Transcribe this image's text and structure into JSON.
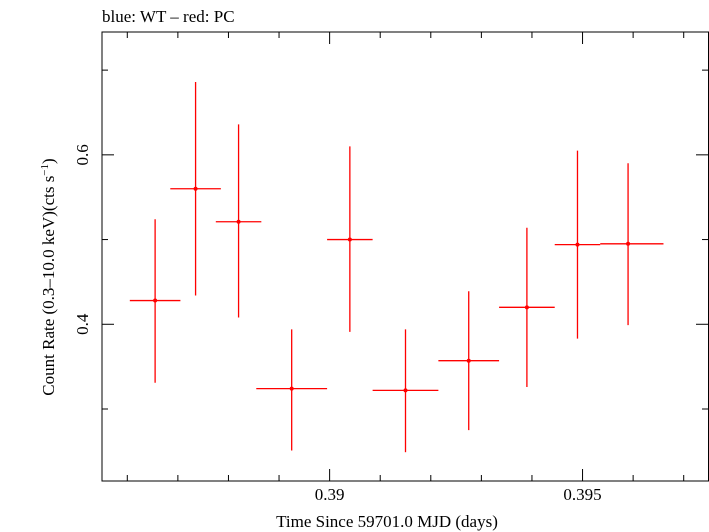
{
  "chart_data": {
    "type": "scatter",
    "title": "blue: WT – red: PC",
    "xlabel": "Time Since 59701.0 MJD (days)",
    "ylabel_main": "Count Rate (0.3–10.0 keV)(cts s",
    "ylabel_sup": "−1",
    "ylabel_end": ")",
    "xlim": [
      0.3855,
      0.3975
    ],
    "ylim": [
      0.215,
      0.745
    ],
    "x_ticks_major": [
      0.39,
      0.395
    ],
    "x_tick_labels": [
      "0.39",
      "0.395"
    ],
    "x_ticks_minor": [
      0.386,
      0.387,
      0.388,
      0.389,
      0.391,
      0.392,
      0.393,
      0.394,
      0.396,
      0.397
    ],
    "y_ticks_major": [
      0.4,
      0.6
    ],
    "y_tick_labels": [
      "0.4",
      "0.6"
    ],
    "y_ticks_minor": [
      0.3,
      0.5,
      0.7
    ],
    "grid": false,
    "series": [
      {
        "color": "#ff0000",
        "points": [
          {
            "x": 0.38655,
            "xlo": 0.38605,
            "xhi": 0.38705,
            "y": 0.428,
            "ylo": 0.331,
            "yhi": 0.524
          },
          {
            "x": 0.38735,
            "xlo": 0.38685,
            "xhi": 0.38785,
            "y": 0.56,
            "ylo": 0.434,
            "yhi": 0.686
          },
          {
            "x": 0.3882,
            "xlo": 0.38775,
            "xhi": 0.38865,
            "y": 0.521,
            "ylo": 0.408,
            "yhi": 0.636
          },
          {
            "x": 0.38925,
            "xlo": 0.38855,
            "xhi": 0.38995,
            "y": 0.324,
            "ylo": 0.251,
            "yhi": 0.394
          },
          {
            "x": 0.3904,
            "xlo": 0.38995,
            "xhi": 0.39085,
            "y": 0.5,
            "ylo": 0.391,
            "yhi": 0.61
          },
          {
            "x": 0.3915,
            "xlo": 0.39085,
            "xhi": 0.39215,
            "y": 0.322,
            "ylo": 0.249,
            "yhi": 0.394
          },
          {
            "x": 0.39275,
            "xlo": 0.39215,
            "xhi": 0.39335,
            "y": 0.357,
            "ylo": 0.275,
            "yhi": 0.439
          },
          {
            "x": 0.3939,
            "xlo": 0.39335,
            "xhi": 0.39445,
            "y": 0.42,
            "ylo": 0.326,
            "yhi": 0.514
          },
          {
            "x": 0.3949,
            "xlo": 0.39445,
            "xhi": 0.39535,
            "y": 0.494,
            "ylo": 0.383,
            "yhi": 0.605
          },
          {
            "x": 0.3959,
            "xlo": 0.39535,
            "xhi": 0.3966,
            "y": 0.495,
            "ylo": 0.399,
            "yhi": 0.59
          }
        ]
      }
    ]
  }
}
